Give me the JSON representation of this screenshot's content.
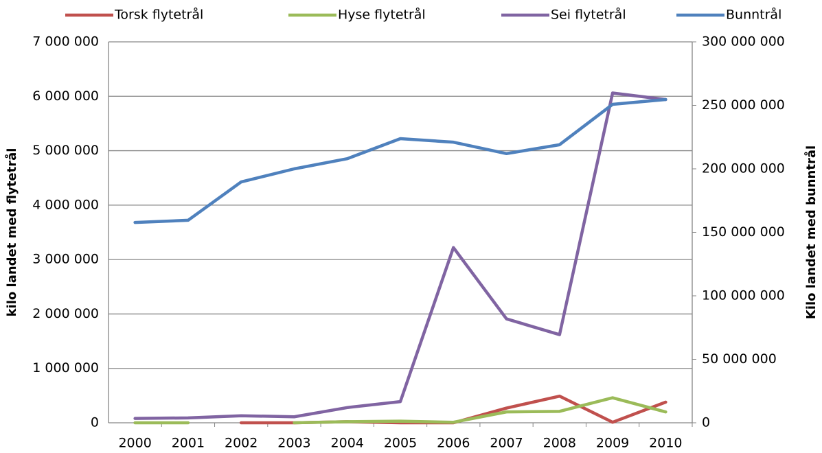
{
  "chart_data": {
    "type": "line",
    "categories": [
      "2000",
      "2001",
      "2002",
      "2003",
      "2004",
      "2005",
      "2006",
      "2007",
      "2008",
      "2009",
      "2010"
    ],
    "y_label": "kilo landet med flytetrål",
    "y2_label": "Kilo landet med bunntrål",
    "ylim": [
      0,
      7000000
    ],
    "yticks": [
      0,
      {
        "value": 1000000,
        "label": "1 000 000"
      },
      {
        "value": 2000000,
        "label": "2 000 000"
      },
      {
        "value": 3000000,
        "label": "3 000 000"
      },
      {
        "value": 4000000,
        "label": "4 000 000"
      },
      {
        "value": 5000000,
        "label": "5 000 000"
      },
      {
        "value": 6000000,
        "label": "6 000 000"
      },
      {
        "value": 7000000,
        "label": "7 000 000"
      }
    ],
    "y2lim": [
      0,
      300000000
    ],
    "y2ticks": [
      0,
      {
        "value": 50000000,
        "label": "50 000 000"
      },
      {
        "value": 100000000,
        "label": "100 000 000"
      },
      {
        "value": 150000000,
        "label": "150 000 000"
      },
      {
        "value": 200000000,
        "label": "200 000 000"
      },
      {
        "value": 250000000,
        "label": "250 000 000"
      },
      {
        "value": 300000000,
        "label": "300 000 000"
      }
    ],
    "grid": true,
    "legend": "top",
    "series": [
      {
        "name": "Torsk flytetrål",
        "color": "#c0504d",
        "values": [
          null,
          null,
          0,
          0,
          20000,
          0,
          0,
          270000,
          490000,
          10000,
          380000
        ]
      },
      {
        "name": "Hyse flytetrål",
        "color": "#9bbb59",
        "values": [
          0,
          0,
          null,
          0,
          20000,
          30000,
          10000,
          200000,
          210000,
          460000,
          200000
        ]
      },
      {
        "name": "Sei flytetrål",
        "color": "#8064a2",
        "values": [
          80000,
          90000,
          130000,
          110000,
          280000,
          390000,
          3220000,
          1910000,
          1620000,
          6060000,
          5940000
        ]
      },
      {
        "name": "Bunntrål",
        "color": "#4f81bd",
        "axis": "y2",
        "values": [
          157800000,
          159500000,
          189700000,
          200000000,
          208000000,
          223800000,
          221000000,
          212000000,
          219000000,
          250800000,
          254600000
        ]
      }
    ]
  }
}
